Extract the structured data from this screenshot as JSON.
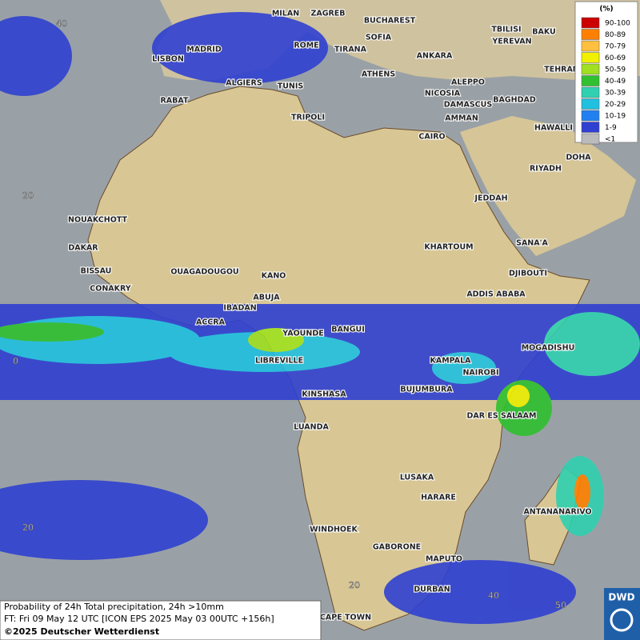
{
  "map": {
    "cities": [
      "MILAN",
      "ZAGREB",
      "BUCHAREST",
      "TBILISI",
      "BAKU",
      "SOFIA",
      "YEREVAN",
      "ROME",
      "MADRID",
      "TIRANA",
      "ANKARA",
      "LISBON",
      "TEHRAN",
      "ATHENS",
      "ALGIERS",
      "TUNIS",
      "ALEPPO",
      "RABAT",
      "NICOSIA",
      "BAGHDAD",
      "DAMASCUS",
      "AMMAN",
      "TRIPOLI",
      "HAWALLI",
      "CAIRO",
      "DOHA",
      "RIYADH",
      "JEDDAH",
      "NOUAKCHOTT",
      "KHARTOUM",
      "DAKAR",
      "SANA'A",
      "BISSAU",
      "OUAGADOUGOU",
      "KANO",
      "DJIBOUTI",
      "CONAKRY",
      "ABUJA",
      "ADDIS ABABA",
      "IBADAN",
      "ACCRA",
      "BANGUI",
      "YAOUNDE",
      "MOGADISHU",
      "LIBREVILLE",
      "KAMPALA",
      "NAIROBI",
      "KINSHASA",
      "BUJUMBURA",
      "DAR ES SALAAM",
      "LUANDA",
      "LUSAKA",
      "HARARE",
      "ANTANANARIVO",
      "WINDHOEK",
      "GABORONE",
      "MAPUTO",
      "DURBAN",
      "CAPE TOWN"
    ],
    "grid_labels": [
      "40",
      "20",
      "0",
      "20",
      "20",
      "40",
      "50"
    ],
    "legend": {
      "title": "(%)",
      "entries": [
        {
          "label": "90-100",
          "color": "#cc0000"
        },
        {
          "label": "80-89",
          "color": "#ff8000"
        },
        {
          "label": "70-79",
          "color": "#ffc040"
        },
        {
          "label": "60-69",
          "color": "#f0f000"
        },
        {
          "label": "50-59",
          "color": "#a0e020"
        },
        {
          "label": "40-49",
          "color": "#30c030"
        },
        {
          "label": "30-39",
          "color": "#30d0b0"
        },
        {
          "label": "20-29",
          "color": "#20c0e0"
        },
        {
          "label": "10-19",
          "color": "#2080f0"
        },
        {
          "label": "1-9",
          "color": "#3040d0"
        },
        {
          "label": "<1",
          "color": "#bbbbbb"
        }
      ]
    },
    "info": [
      "Probability of 24h Total precipitation, 24h >10mm",
      "FT: Fri 09 May 12 UTC [ICON EPS 2025 May 03 00UTC +156h]",
      "©2025 Deutscher Wetterdienst"
    ],
    "logo": "DWD"
  }
}
